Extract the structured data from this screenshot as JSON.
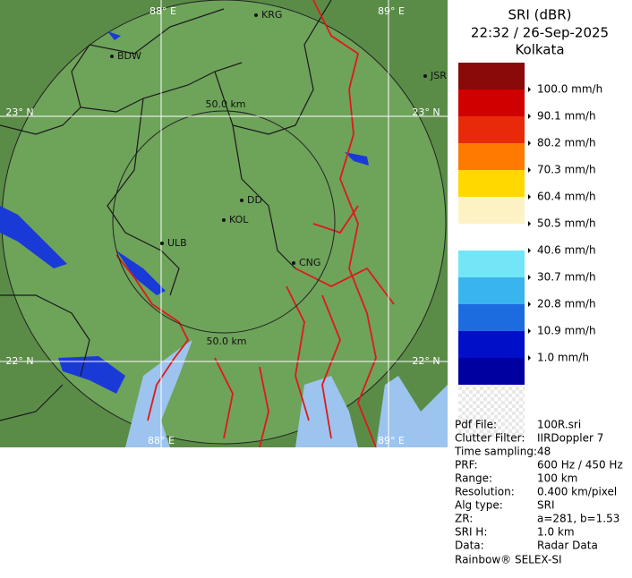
{
  "map": {
    "labels": {
      "top_88": "88° E",
      "top_89": "89° E",
      "left_23": "23° N",
      "right_23": "23° N",
      "left_22": "22° N",
      "right_22": "22° N",
      "bottom_88": "88° E",
      "bottom_89": "89° E",
      "range_upper": "50.0 km",
      "range_lower": "50.0 km"
    },
    "places": [
      "KRG",
      "BDW",
      "JSR",
      "DD",
      "KOL",
      "ULB",
      "CNG"
    ]
  },
  "legend": {
    "title": [
      "SRI (dBR)",
      "22:32 / 26-Sep-2025",
      "Kolkata"
    ],
    "items": [
      {
        "label": "100.0 mm/h",
        "color": "#d00000"
      },
      {
        "label": "90.1 mm/h",
        "color": "#e82a0a"
      },
      {
        "label": "80.2 mm/h",
        "color": "#ff7a00"
      },
      {
        "label": "70.3 mm/h",
        "color": "#ffd800"
      },
      {
        "label": "60.4 mm/h",
        "color": "#fcf2c4"
      },
      {
        "label": "50.5 mm/h",
        "color": "#ffffff"
      },
      {
        "label": "40.6 mm/h",
        "color": "#72e6f6"
      },
      {
        "label": "30.7 mm/h",
        "color": "#3ab4ee"
      },
      {
        "label": "20.8 mm/h",
        "color": "#1c6ce0"
      },
      {
        "label": "10.9 mm/h",
        "color": "#0010c8"
      },
      {
        "label": "1.0 mm/h",
        "color": "#0000a0"
      }
    ],
    "top_color": "#8a0a0a"
  },
  "info": {
    "rows": [
      [
        "Pdf File:",
        "100R.sri"
      ],
      [
        "Clutter Filter:",
        "IIRDoppler 7"
      ],
      [
        "Time sampling:",
        "48"
      ],
      [
        "PRF:",
        "600 Hz / 450 Hz"
      ],
      [
        "Range:",
        "100 km"
      ],
      [
        "Resolution:",
        "0.400 km/pixel"
      ],
      [
        "Alg type:",
        "SRI"
      ],
      [
        "ZR:",
        "a=281, b=1.53"
      ],
      [
        "SRI H:",
        "1.0 km"
      ],
      [
        "Data:",
        "Radar Data"
      ]
    ],
    "footer": "Rainbow® SELEX-SI"
  }
}
